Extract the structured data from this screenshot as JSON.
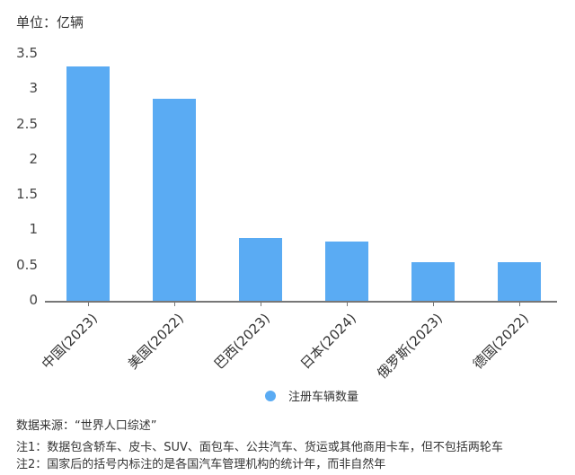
{
  "chart_data": {
    "type": "bar",
    "title": "",
    "unit_label": "单位：亿辆",
    "xlabel": "",
    "ylabel": "亿辆",
    "ylim": [
      0,
      3.5
    ],
    "y_ticks": [
      "0",
      "0.5",
      "1",
      "1.5",
      "2",
      "2.5",
      "3",
      "3.5"
    ],
    "grid": false,
    "legend_position": "bottom",
    "categories": [
      "中国(2023)",
      "美国(2022)",
      "巴西(2023)",
      "日本(2024)",
      "俄罗斯(2023)",
      "德国(2022)"
    ],
    "series": [
      {
        "name": "注册车辆数量",
        "color": "#5aabf3",
        "values": [
          3.32,
          2.86,
          0.89,
          0.84,
          0.55,
          0.55
        ]
      }
    ]
  },
  "footer": {
    "source": "数据来源：“世界人口综述”",
    "note1": "注1：数据包含轿车、皮卡、SUV、面包车、公共汽车、货运或其他商用卡车，但不包括两轮车",
    "note2": "注2：国家后的括号内标注的是各国汽车管理机构的统计年，而非自然年"
  }
}
